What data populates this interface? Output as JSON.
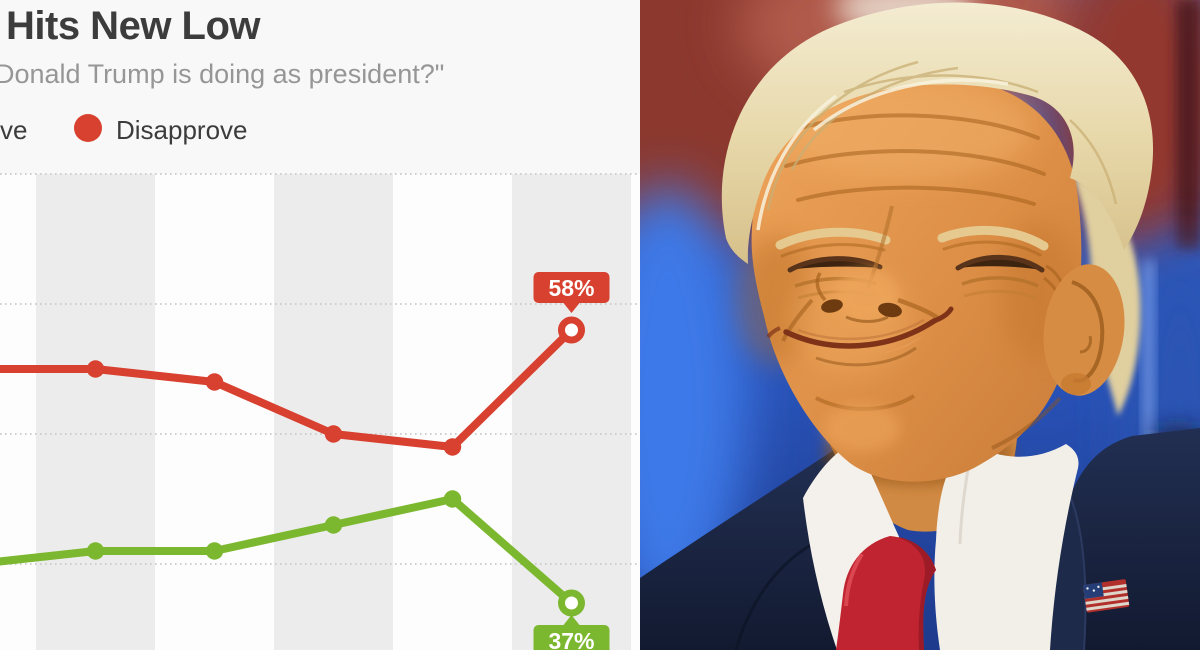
{
  "header": {
    "title": "Hits New Low",
    "subtitle": "Donald Trump is doing as president?\"",
    "legend": [
      {
        "label": "ve",
        "note": "left edge of word cut off by crop, swatch not visible"
      },
      {
        "label": "Disapprove",
        "swatch_color": "#d8402f"
      }
    ]
  },
  "chart_data": {
    "type": "line",
    "title": "Hits New Low",
    "subtitle_visible": "Donald Trump is doing as president?\"",
    "categories": [
      "",
      "",
      "",
      "",
      "",
      ""
    ],
    "series": [
      {
        "name": "Approve",
        "color": "#7cb82f",
        "values": [
          40,
          41,
          41,
          43,
          45,
          37
        ],
        "end_label": "37%",
        "end_label_position": "below",
        "last_marker": "open-circle"
      },
      {
        "name": "Disapprove",
        "color": "#d8402f",
        "values": [
          55,
          55,
          54,
          50,
          49,
          58
        ],
        "end_label": "58%",
        "end_label_position": "above",
        "last_marker": "open-circle"
      }
    ],
    "gridlines": {
      "values": [
        70,
        60,
        50,
        40
      ],
      "style": "dotted"
    },
    "ylim": [
      33,
      71
    ],
    "x_tick_labels_visible": false,
    "legend_position": "top-left",
    "layout_note": "alternating light/gray vertical column bands, one per poll point; first point runs off the left crop edge; bottom of 37% callout cut off by bottom crop edge"
  },
  "colors": {
    "approve": "#7cb82f",
    "disapprove": "#d8402f",
    "band_gray": "#ececec",
    "band_light": "#fdfdfd",
    "gridline": "#cfcfcf",
    "page_bg": "#f8f8f8",
    "title_text": "#3c3c3c",
    "subtitle_text": "#969696",
    "callout_text": "#ffffff"
  },
  "photo": {
    "colors": {
      "background_blue": "#2b57c0",
      "background_red": "#8c372e",
      "suit_navy": "#1a2442",
      "tie_red": "#c02431",
      "shirt_white": "#f2efe9",
      "skin_tan": "#dd8f47",
      "hair_blond": "#e8d9ab"
    }
  }
}
